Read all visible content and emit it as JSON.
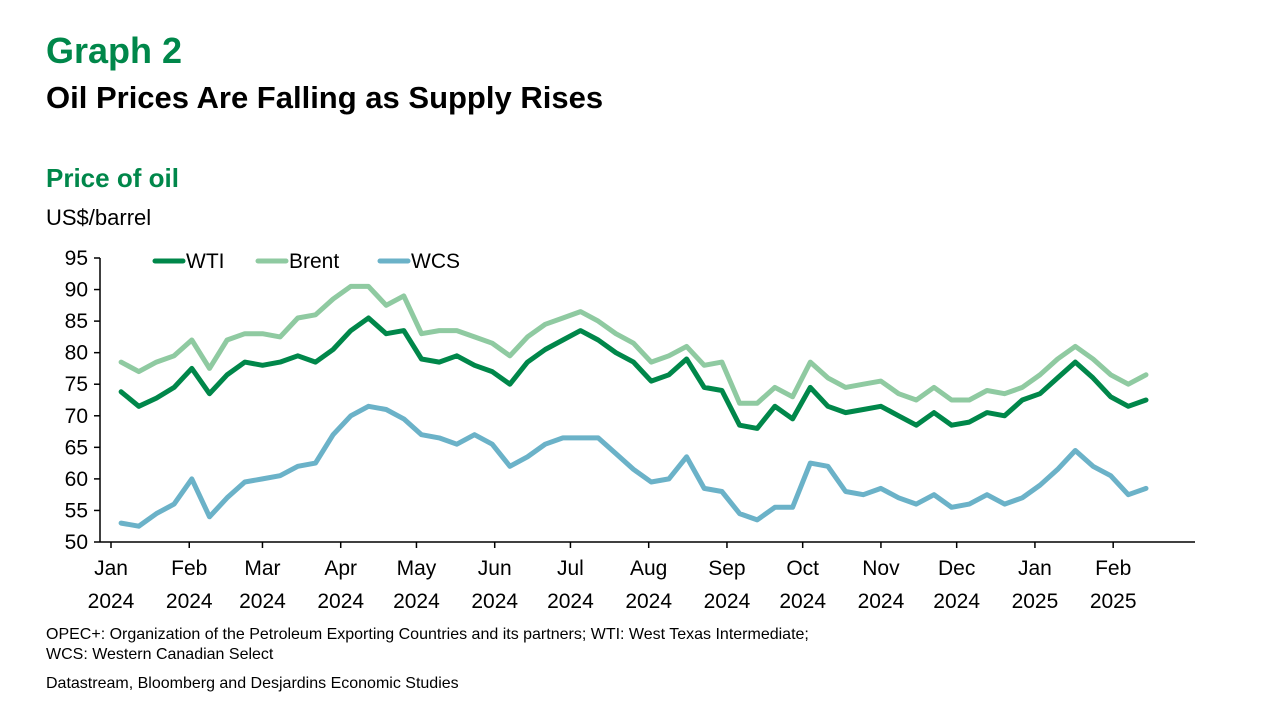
{
  "header": {
    "graph_number": "Graph 2",
    "title": "Oil Prices Are Falling as Supply Rises"
  },
  "footnote": {
    "line1": "OPEC+: Organization of the Petroleum Exporting Countries and its partners; WTI: West Texas Intermediate;",
    "line2": "WCS: Western Canadian Select",
    "source": "Datastream, Bloomberg and Desjardins Economic Studies"
  },
  "chart_data": {
    "type": "line",
    "title": "Price of oil",
    "ylabel": "US$/barrel",
    "ylim": [
      50,
      95
    ],
    "yticks": [
      50,
      55,
      60,
      65,
      70,
      75,
      80,
      85,
      90,
      95
    ],
    "legend_position": "top-left",
    "grid": false,
    "x_month_labels": [
      [
        "Jan",
        "2024"
      ],
      [
        "Feb",
        "2024"
      ],
      [
        "Mar",
        "2024"
      ],
      [
        "Apr",
        "2024"
      ],
      [
        "May",
        "2024"
      ],
      [
        "Jun",
        "2024"
      ],
      [
        "Jul",
        "2024"
      ],
      [
        "Aug",
        "2024"
      ],
      [
        "Sep",
        "2024"
      ],
      [
        "Oct",
        "2024"
      ],
      [
        "Nov",
        "2024"
      ],
      [
        "Dec",
        "2024"
      ],
      [
        "Jan",
        "2025"
      ],
      [
        "Feb",
        "2025"
      ]
    ],
    "x_weeks": [
      "2024-01-05",
      "2024-01-12",
      "2024-01-19",
      "2024-01-26",
      "2024-02-02",
      "2024-02-09",
      "2024-02-16",
      "2024-02-23",
      "2024-03-01",
      "2024-03-08",
      "2024-03-15",
      "2024-03-22",
      "2024-03-29",
      "2024-04-05",
      "2024-04-12",
      "2024-04-19",
      "2024-04-26",
      "2024-05-03",
      "2024-05-10",
      "2024-05-17",
      "2024-05-24",
      "2024-05-31",
      "2024-06-07",
      "2024-06-14",
      "2024-06-21",
      "2024-06-28",
      "2024-07-05",
      "2024-07-12",
      "2024-07-19",
      "2024-07-26",
      "2024-08-02",
      "2024-08-09",
      "2024-08-16",
      "2024-08-23",
      "2024-08-30",
      "2024-09-06",
      "2024-09-13",
      "2024-09-20",
      "2024-09-27",
      "2024-10-04",
      "2024-10-11",
      "2024-10-18",
      "2024-10-25",
      "2024-11-01",
      "2024-11-08",
      "2024-11-15",
      "2024-11-22",
      "2024-11-29",
      "2024-12-06",
      "2024-12-13",
      "2024-12-20",
      "2024-12-27",
      "2025-01-03",
      "2025-01-10",
      "2025-01-17",
      "2025-01-24",
      "2025-01-31",
      "2025-02-07",
      "2025-02-14"
    ],
    "series": [
      {
        "name": "WTI",
        "color": "#00874a",
        "values": [
          73.8,
          71.5,
          72.8,
          74.5,
          77.5,
          73.5,
          76.5,
          78.5,
          78.0,
          78.5,
          79.5,
          78.5,
          80.5,
          83.5,
          85.5,
          83.0,
          83.5,
          79.0,
          78.5,
          79.5,
          78.0,
          77.0,
          75.0,
          78.5,
          80.5,
          82.0,
          83.5,
          82.0,
          80.0,
          78.5,
          75.5,
          76.5,
          79.0,
          74.5,
          74.0,
          68.5,
          68.0,
          71.5,
          69.5,
          74.5,
          71.5,
          70.5,
          71.0,
          71.5,
          70.0,
          68.5,
          70.5,
          68.5,
          69.0,
          70.5,
          70.0,
          72.5,
          73.5,
          76.0,
          78.5,
          76.0,
          73.0,
          71.5,
          72.5
        ]
      },
      {
        "name": "Brent",
        "color": "#8fcaa1",
        "values": [
          78.5,
          77.0,
          78.5,
          79.5,
          82.0,
          77.5,
          82.0,
          83.0,
          83.0,
          82.5,
          85.5,
          86.0,
          88.5,
          90.5,
          90.5,
          87.5,
          89.0,
          83.0,
          83.5,
          83.5,
          82.5,
          81.5,
          79.5,
          82.5,
          84.5,
          85.5,
          86.5,
          85.0,
          83.0,
          81.5,
          78.5,
          79.5,
          81.0,
          78.0,
          78.5,
          72.0,
          72.0,
          74.5,
          73.0,
          78.5,
          76.0,
          74.5,
          75.0,
          75.5,
          73.5,
          72.5,
          74.5,
          72.5,
          72.5,
          74.0,
          73.5,
          74.5,
          76.5,
          79.0,
          81.0,
          79.0,
          76.5,
          75.0,
          76.5
        ]
      },
      {
        "name": "WCS",
        "color": "#6bb2c8",
        "values": [
          53.0,
          52.5,
          54.5,
          56.0,
          60.0,
          54.0,
          57.0,
          59.5,
          60.0,
          60.5,
          62.0,
          62.5,
          67.0,
          70.0,
          71.5,
          71.0,
          69.5,
          67.0,
          66.5,
          65.5,
          67.0,
          65.5,
          62.0,
          63.5,
          65.5,
          66.5,
          66.5,
          66.5,
          64.0,
          61.5,
          59.5,
          60.0,
          63.5,
          58.5,
          58.0,
          54.5,
          53.5,
          55.5,
          55.5,
          62.5,
          62.0,
          58.0,
          57.5,
          58.5,
          57.0,
          56.0,
          57.5,
          55.5,
          56.0,
          57.5,
          56.0,
          57.0,
          59.0,
          61.5,
          64.5,
          62.0,
          60.5,
          57.5,
          58.5
        ]
      }
    ]
  }
}
